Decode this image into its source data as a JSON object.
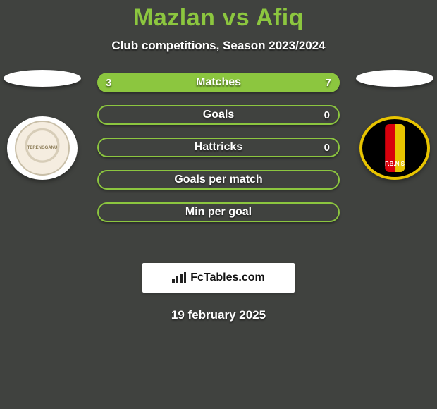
{
  "background_color": "#40423f",
  "title": {
    "left_name": "Mazlan",
    "vs": "vs",
    "right_name": "Afiq",
    "color": "#8cc63f"
  },
  "subtitle": "Club competitions, Season 2023/2024",
  "colors": {
    "left_fill": "#8cc63f",
    "right_fill": "#8cc63f",
    "empty_fill": "#40423f",
    "bar_border": "#8cc63f",
    "text_white": "#ffffff"
  },
  "bars": [
    {
      "label": "Matches",
      "left_val": "3",
      "right_val": "7",
      "left_pct": 30,
      "right_pct": 70,
      "show_vals": true,
      "style": "split"
    },
    {
      "label": "Goals",
      "left_val": "",
      "right_val": "0",
      "left_pct": 0,
      "right_pct": 0,
      "show_vals": true,
      "style": "outline"
    },
    {
      "label": "Hattricks",
      "left_val": "",
      "right_val": "0",
      "left_pct": 0,
      "right_pct": 0,
      "show_vals": true,
      "style": "outline"
    },
    {
      "label": "Goals per match",
      "left_val": "",
      "right_val": "",
      "left_pct": 0,
      "right_pct": 0,
      "show_vals": false,
      "style": "outline"
    },
    {
      "label": "Min per goal",
      "left_val": "",
      "right_val": "",
      "left_pct": 0,
      "right_pct": 0,
      "show_vals": false,
      "style": "outline"
    }
  ],
  "crest_left_text": "TERENGGANU",
  "crest_right_text": "P.B.N.S",
  "brand": "FcTables.com",
  "date": "19 february 2025"
}
